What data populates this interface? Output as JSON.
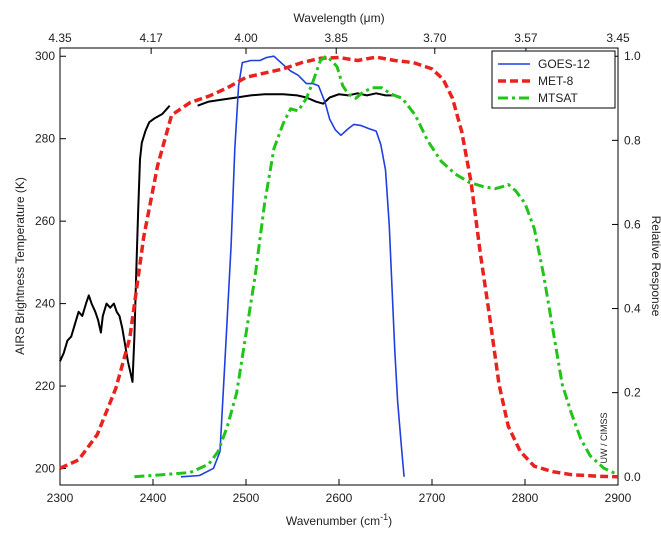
{
  "chart_data": {
    "type": "line",
    "xlabel": "Wavenumber (cm",
    "xlabel_sup": "-1",
    "xlabel_close": ")",
    "x2label": "Wavelength (μm)",
    "ylabel": "AIRS Brightness Temperature (K)",
    "y2label": "Relative Response",
    "annotation": "UW / CIMSS",
    "xlim": [
      2300,
      2900
    ],
    "ylim": [
      196,
      302
    ],
    "y2lim": [
      0.0,
      1.0
    ],
    "x_ticks": [
      2300,
      2400,
      2500,
      2600,
      2700,
      2800,
      2900
    ],
    "y_ticks": [
      200,
      220,
      240,
      260,
      280,
      300
    ],
    "y2_ticks": [
      0.0,
      0.2,
      0.4,
      0.6,
      0.8,
      1.0
    ],
    "y2_tick_labels": [
      "0.0",
      "0.2",
      "0.4",
      "0.6",
      "0.8",
      "1.0"
    ],
    "x2_ticks": [
      {
        "label": "4.35",
        "at": 2300
      },
      {
        "label": "4.17",
        "at": 2398
      },
      {
        "label": "4.00",
        "at": 2500
      },
      {
        "label": "3.85",
        "at": 2597
      },
      {
        "label": "3.70",
        "at": 2703
      },
      {
        "label": "3.57",
        "at": 2801
      },
      {
        "label": "3.45",
        "at": 2900
      }
    ],
    "legend_position": "top-right",
    "legend_entries": [
      "GOES-12",
      "MET-8",
      "MTSAT"
    ],
    "colors": {
      "airs": "#000000",
      "goes": "#1f3fe0",
      "met": "#e8231e",
      "mtsat": "#22c41a"
    },
    "airs_spectrum": {
      "axis": "left",
      "segments": [
        [
          [
            2300,
            226
          ],
          [
            2304,
            228
          ],
          [
            2308,
            231
          ],
          [
            2312,
            232
          ],
          [
            2316,
            235
          ],
          [
            2320,
            238
          ],
          [
            2324,
            237
          ],
          [
            2328,
            240
          ],
          [
            2331,
            242
          ],
          [
            2334,
            240
          ],
          [
            2338,
            238
          ],
          [
            2341,
            236
          ],
          [
            2344,
            233
          ],
          [
            2346,
            237
          ],
          [
            2350,
            240
          ],
          [
            2354,
            239
          ],
          [
            2358,
            240
          ],
          [
            2361,
            238
          ],
          [
            2364,
            237
          ],
          [
            2367,
            234
          ],
          [
            2370,
            230
          ],
          [
            2373,
            226
          ],
          [
            2376,
            223
          ],
          [
            2378,
            221
          ],
          [
            2380,
            232
          ],
          [
            2382,
            248
          ],
          [
            2384,
            262
          ],
          [
            2386,
            275
          ],
          [
            2388,
            279
          ],
          [
            2392,
            282
          ],
          [
            2396,
            284
          ],
          [
            2402,
            285
          ],
          [
            2410,
            286
          ],
          [
            2418,
            288
          ]
        ],
        [
          [
            2448,
            288
          ],
          [
            2460,
            289
          ],
          [
            2475,
            289.5
          ],
          [
            2490,
            290
          ],
          [
            2505,
            290.5
          ],
          [
            2520,
            290.8
          ],
          [
            2540,
            290.8
          ],
          [
            2555,
            290.5
          ],
          [
            2565,
            290
          ],
          [
            2575,
            289
          ],
          [
            2583,
            288.5
          ],
          [
            2590,
            290
          ],
          [
            2600,
            290.8
          ],
          [
            2610,
            290.5
          ],
          [
            2620,
            291
          ],
          [
            2630,
            290.5
          ],
          [
            2640,
            291
          ],
          [
            2650,
            290.5
          ],
          [
            2660,
            290.5
          ]
        ]
      ]
    },
    "series": [
      {
        "name": "GOES-12",
        "axis": "right",
        "style": "solid",
        "points": [
          [
            2430,
            0.0
          ],
          [
            2450,
            0.003
          ],
          [
            2465,
            0.02
          ],
          [
            2472,
            0.06
          ],
          [
            2478,
            0.3
          ],
          [
            2484,
            0.55
          ],
          [
            2488,
            0.78
          ],
          [
            2492,
            0.93
          ],
          [
            2496,
            0.985
          ],
          [
            2505,
            0.99
          ],
          [
            2515,
            0.99
          ],
          [
            2522,
            0.997
          ],
          [
            2530,
            1.0
          ],
          [
            2540,
            0.98
          ],
          [
            2548,
            0.965
          ],
          [
            2556,
            0.955
          ],
          [
            2565,
            0.935
          ],
          [
            2572,
            0.935
          ],
          [
            2578,
            0.93
          ],
          [
            2585,
            0.89
          ],
          [
            2590,
            0.85
          ],
          [
            2596,
            0.825
          ],
          [
            2602,
            0.812
          ],
          [
            2610,
            0.828
          ],
          [
            2616,
            0.838
          ],
          [
            2624,
            0.835
          ],
          [
            2632,
            0.828
          ],
          [
            2640,
            0.822
          ],
          [
            2645,
            0.79
          ],
          [
            2650,
            0.73
          ],
          [
            2654,
            0.6
          ],
          [
            2657,
            0.45
          ],
          [
            2660,
            0.3
          ],
          [
            2663,
            0.18
          ],
          [
            2666,
            0.1
          ],
          [
            2668,
            0.05
          ],
          [
            2670,
            0.0
          ]
        ]
      },
      {
        "name": "MET-8",
        "axis": "right",
        "style": "dashed",
        "points": [
          [
            2300,
            0.02
          ],
          [
            2320,
            0.04
          ],
          [
            2340,
            0.1
          ],
          [
            2360,
            0.21
          ],
          [
            2375,
            0.33
          ],
          [
            2390,
            0.57
          ],
          [
            2405,
            0.74
          ],
          [
            2420,
            0.86
          ],
          [
            2440,
            0.89
          ],
          [
            2460,
            0.905
          ],
          [
            2480,
            0.925
          ],
          [
            2500,
            0.95
          ],
          [
            2520,
            0.96
          ],
          [
            2540,
            0.97
          ],
          [
            2560,
            0.985
          ],
          [
            2580,
            0.995
          ],
          [
            2600,
            0.997
          ],
          [
            2620,
            0.99
          ],
          [
            2640,
            0.998
          ],
          [
            2660,
            0.99
          ],
          [
            2680,
            0.985
          ],
          [
            2700,
            0.97
          ],
          [
            2712,
            0.945
          ],
          [
            2722,
            0.9
          ],
          [
            2732,
            0.82
          ],
          [
            2742,
            0.7
          ],
          [
            2752,
            0.53
          ],
          [
            2762,
            0.38
          ],
          [
            2772,
            0.22
          ],
          [
            2782,
            0.12
          ],
          [
            2795,
            0.06
          ],
          [
            2810,
            0.025
          ],
          [
            2830,
            0.012
          ],
          [
            2850,
            0.005
          ],
          [
            2880,
            0.001
          ],
          [
            2900,
            0.0
          ]
        ]
      },
      {
        "name": "MTSAT",
        "axis": "right",
        "style": "dashdot",
        "points": [
          [
            2380,
            0.0
          ],
          [
            2410,
            0.005
          ],
          [
            2440,
            0.01
          ],
          [
            2460,
            0.03
          ],
          [
            2470,
            0.06
          ],
          [
            2480,
            0.12
          ],
          [
            2490,
            0.2
          ],
          [
            2500,
            0.34
          ],
          [
            2510,
            0.48
          ],
          [
            2520,
            0.65
          ],
          [
            2530,
            0.78
          ],
          [
            2540,
            0.84
          ],
          [
            2548,
            0.875
          ],
          [
            2556,
            0.87
          ],
          [
            2565,
            0.9
          ],
          [
            2572,
            0.94
          ],
          [
            2580,
            0.99
          ],
          [
            2586,
            1.0
          ],
          [
            2592,
            0.99
          ],
          [
            2598,
            0.975
          ],
          [
            2604,
            0.93
          ],
          [
            2610,
            0.91
          ],
          [
            2618,
            0.9
          ],
          [
            2626,
            0.915
          ],
          [
            2636,
            0.925
          ],
          [
            2646,
            0.925
          ],
          [
            2656,
            0.91
          ],
          [
            2668,
            0.9
          ],
          [
            2682,
            0.86
          ],
          [
            2695,
            0.8
          ],
          [
            2710,
            0.75
          ],
          [
            2725,
            0.72
          ],
          [
            2740,
            0.7
          ],
          [
            2755,
            0.69
          ],
          [
            2768,
            0.685
          ],
          [
            2776,
            0.69
          ],
          [
            2782,
            0.695
          ],
          [
            2790,
            0.68
          ],
          [
            2800,
            0.65
          ],
          [
            2810,
            0.59
          ],
          [
            2820,
            0.48
          ],
          [
            2830,
            0.35
          ],
          [
            2840,
            0.22
          ],
          [
            2850,
            0.15
          ],
          [
            2860,
            0.09
          ],
          [
            2870,
            0.05
          ],
          [
            2885,
            0.02
          ],
          [
            2900,
            0.005
          ]
        ]
      }
    ]
  }
}
